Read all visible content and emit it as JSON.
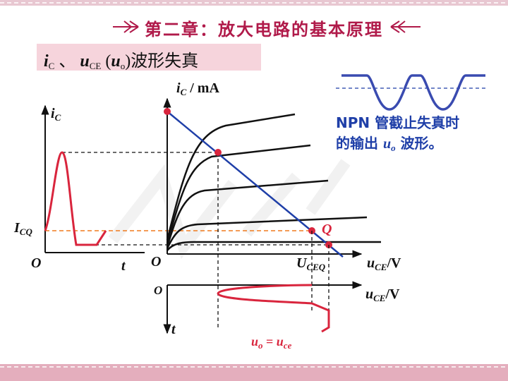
{
  "header": {
    "title": "第二章：放大电路的基本原理"
  },
  "slide": {
    "title_ic": "i",
    "title_ic_sub": "C",
    "title_sep": "、",
    "title_uce": "u",
    "title_uce_sub": "CE",
    "title_paren_open": "(",
    "title_uo": "u",
    "title_uo_sub": "o",
    "title_paren_close": ")",
    "title_rest": "波形失真"
  },
  "labels": {
    "ic_axis": "i",
    "ic_axis_sub": "C",
    "ic_unit": " / mA",
    "ic_left": "i",
    "ic_left_sub": "C",
    "icq": "I",
    "icq_sub": "CQ",
    "origin_left": "O",
    "t_left": "t",
    "origin_mid": "O",
    "uceq": "U",
    "uceq_sub": "CEQ",
    "uce_axis": "u",
    "uce_axis_sub": "CE",
    "uce_unit": "/V",
    "origin_bottom": "O",
    "uce_axis2": "u",
    "uce_axis2_sub": "CE",
    "uce2_unit": "/V",
    "t_bottom": "t",
    "q_point": "Q"
  },
  "note": {
    "line1": "NPN 管截止失真时",
    "line2_pre": "的输出 ",
    "line2_var": "u",
    "line2_sub": "o",
    "line2_post": " 波形。"
  },
  "equation": {
    "lhs": "u",
    "lhs_sub": "o",
    "eq": " = ",
    "rhs": "u",
    "rhs_sub": "ce"
  },
  "colors": {
    "header": "#b01a4a",
    "title_bg": "#f6d4dc",
    "load_line": "#1f3fa8",
    "signal": "#d9253d",
    "quiescent": "#f07a1e",
    "note": "#1f3fa8"
  }
}
